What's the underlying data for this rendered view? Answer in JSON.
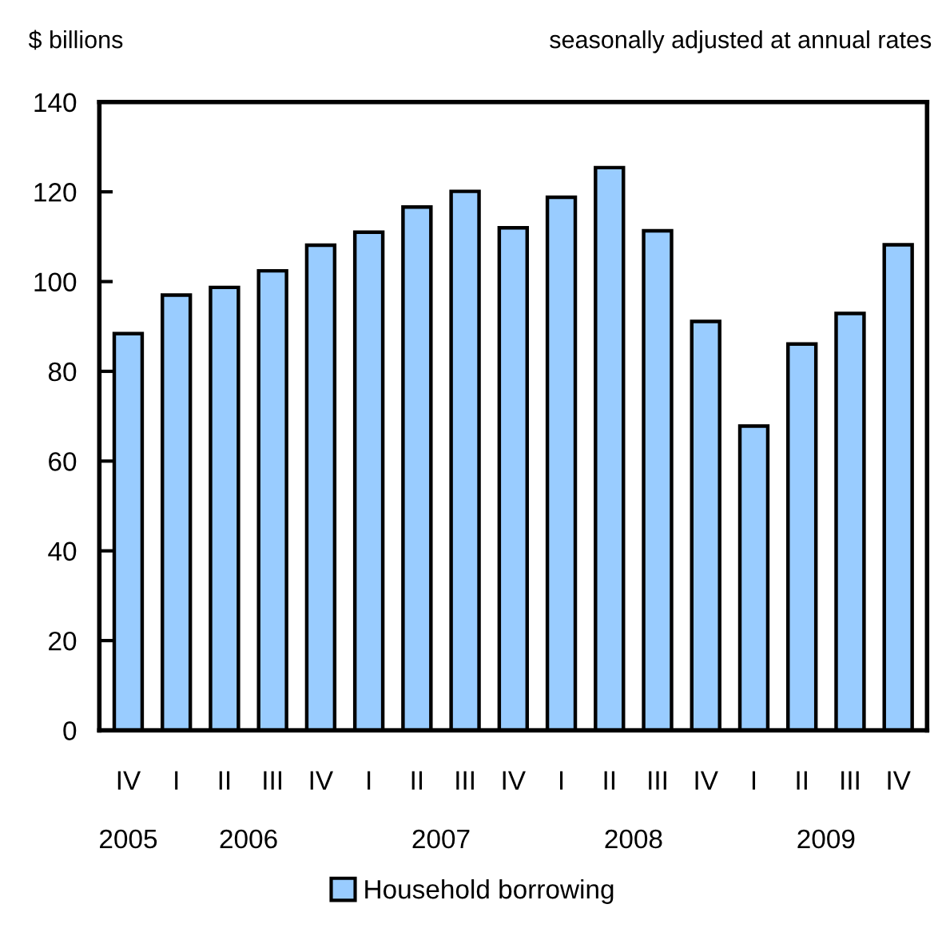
{
  "chart_data": {
    "type": "bar",
    "ylabel": "$ billions",
    "subtitle": "seasonally adjusted at annual rates",
    "categories": [
      "IV",
      "I",
      "II",
      "III",
      "IV",
      "I",
      "II",
      "III",
      "IV",
      "I",
      "II",
      "III",
      "IV",
      "I",
      "II",
      "III",
      "IV"
    ],
    "series": [
      {
        "name": "Household borrowing",
        "color": "#99ccff",
        "values": [
          88.4,
          97.0,
          98.7,
          102.4,
          108.1,
          111.0,
          116.6,
          120.1,
          112.0,
          118.8,
          125.4,
          111.3,
          91.1,
          67.8,
          86.1,
          92.9,
          108.2
        ]
      }
    ],
    "annotations": [
      "2005",
      "2006",
      "2007",
      "2008",
      "2009"
    ],
    "ylim": [
      0,
      140
    ],
    "yticks": [
      0,
      20,
      40,
      60,
      80,
      100,
      120,
      140
    ],
    "grid": false,
    "legend": "bottom"
  }
}
